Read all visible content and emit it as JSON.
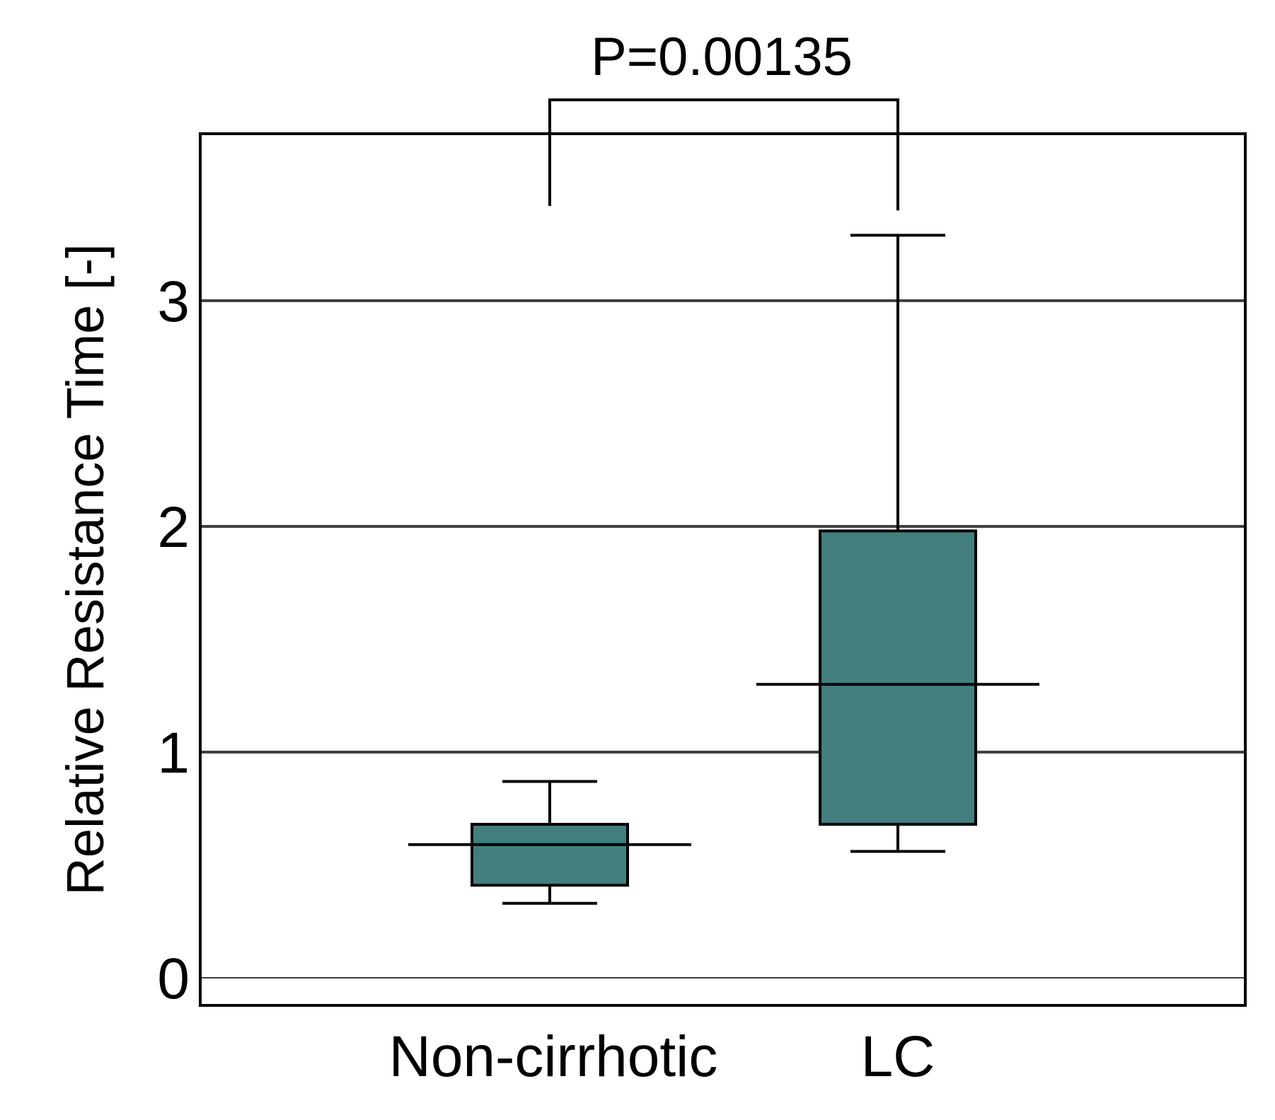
{
  "chart_data": {
    "type": "box",
    "title": "",
    "xlabel": "",
    "ylabel": "Relative Resistance Time [-]",
    "ylim": [
      -0.12,
      3.75
    ],
    "yticks": [
      0,
      1,
      2,
      3
    ],
    "ytick_labels": [
      "0",
      "1",
      "2",
      "3"
    ],
    "grid": "horizontal",
    "categories": [
      "Non-cirrhotic",
      "LC"
    ],
    "series": [
      {
        "name": "Non-cirrhotic",
        "whisker_low": 0.33,
        "q1": 0.41,
        "median": 0.59,
        "q3": 0.68,
        "whisker_high": 0.87
      },
      {
        "name": "LC",
        "whisker_low": 0.56,
        "q1": 0.68,
        "median": 1.3,
        "q3": 1.98,
        "whisker_high": 3.29
      }
    ],
    "significance": {
      "text": "P=0.00135",
      "bracket_top": 3.89,
      "left_drop_to": 3.42,
      "right_drop_to": 3.4
    },
    "colors": {
      "box_fill": "#437f7f",
      "stroke": "#000000",
      "grid": "#404040"
    }
  }
}
